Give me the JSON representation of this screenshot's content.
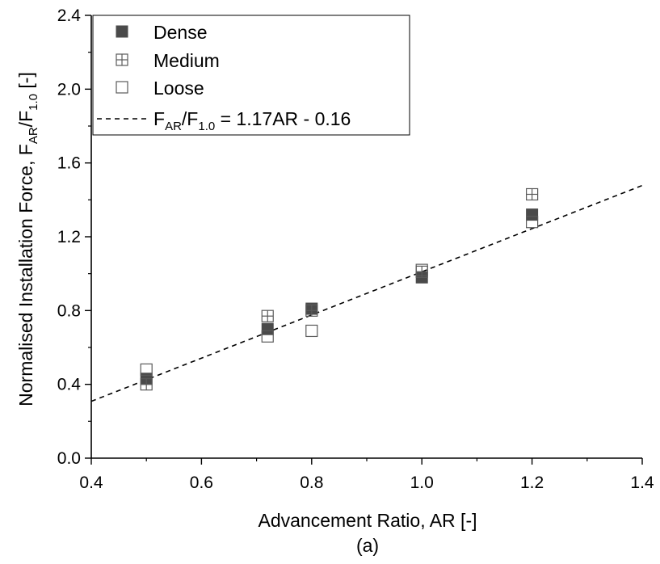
{
  "chart_data": {
    "type": "scatter",
    "xlabel": "Advancement Ratio, AR [-]",
    "ylabel": {
      "prefix": "Normalised Installation Force, F",
      "sub1": "AR",
      "mid": "/F",
      "sub2": "1.0",
      "suffix": " [-]"
    },
    "panel_label": "(a)",
    "xlim": [
      0.4,
      1.4
    ],
    "ylim": [
      0.0,
      2.4
    ],
    "xticks": [
      "0.4",
      "0.6",
      "0.8",
      "1.0",
      "1.2",
      "1.4"
    ],
    "yticks": [
      "0.0",
      "0.4",
      "0.8",
      "1.2",
      "1.6",
      "2.0",
      "2.4"
    ],
    "grid": false,
    "legend_position": "top-left",
    "series": [
      {
        "name": "Dense",
        "marker": "filled-square",
        "color": "#4a4a4a",
        "x": [
          0.5,
          0.72,
          0.8,
          1.0,
          1.2
        ],
        "y": [
          0.43,
          0.7,
          0.81,
          0.98,
          1.32
        ]
      },
      {
        "name": "Medium",
        "marker": "crossed-square",
        "color": "#5a5a5a",
        "x": [
          0.5,
          0.72,
          0.8,
          1.0,
          1.2
        ],
        "y": [
          0.4,
          0.77,
          0.8,
          1.01,
          1.43
        ]
      },
      {
        "name": "Loose",
        "marker": "open-square",
        "color": "#5a5a5a",
        "x": [
          0.5,
          0.72,
          0.8,
          1.0,
          1.2
        ],
        "y": [
          0.48,
          0.66,
          0.69,
          1.02,
          1.28
        ]
      }
    ],
    "fit": {
      "label": {
        "prefix": "F",
        "sub1": "AR",
        "mid": "/F",
        "sub2": "1.0",
        "suffix": " = 1.17AR - 0.16"
      },
      "slope": 1.17,
      "intercept": -0.16,
      "x_range": [
        0.4,
        1.4
      ],
      "style": "dashed"
    }
  }
}
